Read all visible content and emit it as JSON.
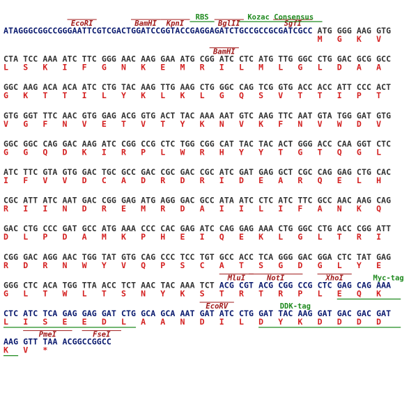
{
  "rows": [
    {
      "dna": [
        {
          "text": "ATAGGGCGGCCGGGAATTCGTCGACTGGATCCGGTACCGAGGAGATCTGCCGCCGCGATCGCC",
          "color": "#0a1a6e"
        },
        {
          "text": "ATG GGG AAG GTG",
          "color": "#333333"
        }
      ],
      "aa": [
        "M",
        "G",
        "K",
        "V"
      ],
      "annotations": [
        {
          "label": "EcoRI",
          "color": "#a01818"
        },
        {
          "label": "BamHI",
          "color": "#a01818"
        },
        {
          "label": "KpnI",
          "color": "#a01818"
        },
        {
          "label": "BglII",
          "color": "#a01818"
        },
        {
          "label": "SgfI",
          "color": "#a01818"
        },
        {
          "label": "RBS",
          "color": "#1f8a1f"
        },
        {
          "label": "Kozac Consensus",
          "color": "#1f8a1f"
        }
      ]
    },
    {
      "dna": [
        {
          "text": "CTA TCC AAA ATC TTC GGG AAC AAG GAA ATG CGG ATC CTC ATG TTG GGC CTG GAC GCG GCC",
          "color": "#333333"
        }
      ],
      "aa": [
        "L",
        "S",
        "K",
        "I",
        "F",
        "G",
        "N",
        "K",
        "E",
        "M",
        "R",
        "I",
        "L",
        "M",
        "L",
        "G",
        "L",
        "D",
        "A",
        "A"
      ],
      "annotations": [
        {
          "label": "BamHI",
          "color": "#a01818"
        }
      ]
    },
    {
      "dna": [
        {
          "text": "GGC AAG ACA ACA ATC CTG TAC AAG TTG AAG CTG GGC CAG TCG GTG ACC ACC ATT CCC ACT",
          "color": "#333333"
        }
      ],
      "aa": [
        "G",
        "K",
        "T",
        "T",
        "I",
        "L",
        "Y",
        "K",
        "L",
        "K",
        "L",
        "G",
        "Q",
        "S",
        "V",
        "T",
        "T",
        "I",
        "P",
        "T"
      ],
      "annotations": []
    },
    {
      "dna": [
        {
          "text": "GTG GGT TTC AAC GTG GAG ACG GTG ACT TAC AAA AAT GTC AAG TTC AAT GTA TGG GAT GTG",
          "color": "#333333"
        }
      ],
      "aa": [
        "V",
        "G",
        "F",
        "N",
        "V",
        "E",
        "T",
        "V",
        "T",
        "Y",
        "K",
        "N",
        "V",
        "K",
        "F",
        "N",
        "V",
        "W",
        "D",
        "V"
      ],
      "annotations": []
    },
    {
      "dna": [
        {
          "text": "GGC GGC CAG GAC AAG ATC CGG CCG CTC TGG CGG CAT TAC TAC ACT GGG ACC CAA GGT CTC",
          "color": "#333333"
        }
      ],
      "aa": [
        "G",
        "G",
        "Q",
        "D",
        "K",
        "I",
        "R",
        "P",
        "L",
        "W",
        "R",
        "H",
        "Y",
        "Y",
        "T",
        "G",
        "T",
        "Q",
        "G",
        "L"
      ],
      "annotations": []
    },
    {
      "dna": [
        {
          "text": "ATC TTC GTA GTG GAC TGC GCC GAC CGC GAC CGC ATC GAT GAG GCT CGC CAG GAG CTG CAC",
          "color": "#333333"
        }
      ],
      "aa": [
        "I",
        "F",
        "V",
        "V",
        "D",
        "C",
        "A",
        "D",
        "R",
        "D",
        "R",
        "I",
        "D",
        "E",
        "A",
        "R",
        "Q",
        "E",
        "L",
        "H"
      ],
      "annotations": []
    },
    {
      "dna": [
        {
          "text": "CGC ATT ATC AAT GAC CGG GAG ATG AGG GAC GCC ATA ATC CTC ATC TTC GCC AAC AAG CAG",
          "color": "#333333"
        }
      ],
      "aa": [
        "R",
        "I",
        "I",
        "N",
        "D",
        "R",
        "E",
        "M",
        "R",
        "D",
        "A",
        "I",
        "I",
        "L",
        "I",
        "F",
        "A",
        "N",
        "K",
        "Q"
      ],
      "annotations": []
    },
    {
      "dna": [
        {
          "text": "GAC CTG CCC GAT GCC ATG AAA CCC CAC GAG ATC CAG GAG AAA CTG GGC CTG ACC CGG ATT",
          "color": "#333333"
        }
      ],
      "aa": [
        "D",
        "L",
        "P",
        "D",
        "A",
        "M",
        "K",
        "P",
        "H",
        "E",
        "I",
        "Q",
        "E",
        "K",
        "L",
        "G",
        "L",
        "T",
        "R",
        "I"
      ],
      "annotations": []
    },
    {
      "dna": [
        {
          "text": "CGG GAC AGG AAC TGG TAT GTG CAG CCC TCC TGT GCC ACC TCA GGG GAC GGA CTC TAT GAG",
          "color": "#333333"
        }
      ],
      "aa": [
        "R",
        "D",
        "R",
        "N",
        "W",
        "Y",
        "V",
        "Q",
        "P",
        "S",
        "C",
        "A",
        "T",
        "S",
        "G",
        "D",
        "G",
        "L",
        "Y",
        "E"
      ],
      "annotations": []
    },
    {
      "dna": [
        {
          "text": "GGG CTC ACA TGG TTA ACC TCT AAC TAC AAA TCT",
          "color": "#333333"
        },
        {
          "text": "ACG CGT ACG CGG CCG CTC GAG CAG AAA",
          "color": "#0a1a6e"
        }
      ],
      "aa": [
        "G",
        "L",
        "T",
        "W",
        "L",
        "T",
        "S",
        "N",
        "Y",
        "K",
        "S",
        "T",
        "R",
        "T",
        "R",
        "P",
        "L",
        "E",
        "Q",
        "K"
      ],
      "annotations": [
        {
          "label": "MluI",
          "color": "#a01818"
        },
        {
          "label": "NotI",
          "color": "#a01818"
        },
        {
          "label": "XhoI",
          "color": "#a01818"
        },
        {
          "label": "Myc-tag",
          "color": "#1f8a1f"
        }
      ]
    },
    {
      "dna": [
        {
          "text": "CTC ATC TCA GAG GAG GAT CTG GCA GCA AAT GAT ATC CTG GAT TAC AAG GAT GAC GAC GAT",
          "color": "#0a1a6e"
        }
      ],
      "aa": [
        "L",
        "I",
        "S",
        "E",
        "E",
        "D",
        "L",
        "A",
        "A",
        "N",
        "D",
        "I",
        "L",
        "D",
        "Y",
        "K",
        "D",
        "D",
        "D",
        "D"
      ],
      "annotations": [
        {
          "label": "EcoRV",
          "color": "#a01818"
        },
        {
          "label": "DDK-tag",
          "color": "#1f8a1f"
        }
      ]
    },
    {
      "dna": [
        {
          "text": "AAG GTT TAA",
          "color": "#0a1a6e"
        },
        {
          "text": "ACGGCCGGCC",
          "color": "#0a1a6e"
        }
      ],
      "aa": [
        "K",
        "V",
        "*"
      ],
      "annotations": [
        {
          "label": "PmeI",
          "color": "#a01818"
        },
        {
          "label": "FseI",
          "color": "#a01818"
        }
      ]
    }
  ]
}
